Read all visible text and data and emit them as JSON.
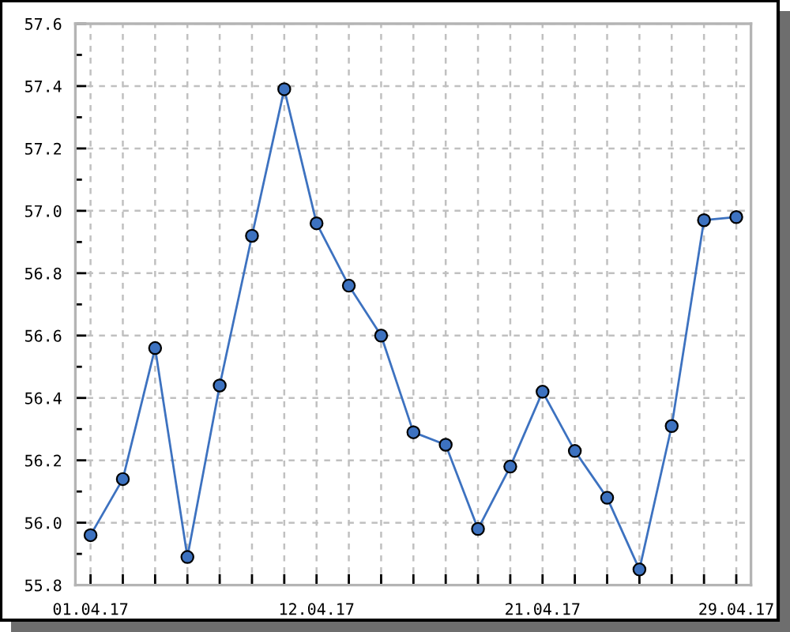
{
  "chart_data": {
    "type": "line",
    "categories": [
      "01.04.17",
      null,
      null,
      null,
      null,
      null,
      null,
      "12.04.17",
      null,
      null,
      null,
      null,
      null,
      null,
      "21.04.17",
      null,
      null,
      null,
      null,
      null,
      "29.04.17"
    ],
    "series": [
      {
        "color": "#3d72c0",
        "values": [
          55.96,
          56.14,
          56.56,
          55.89,
          56.44,
          56.92,
          57.39,
          56.96,
          56.76,
          56.6,
          56.29,
          56.25,
          55.98,
          56.18,
          56.42,
          56.23,
          56.08,
          55.85,
          56.31,
          56.97,
          56.98
        ]
      }
    ],
    "ylim": [
      55.8,
      57.6
    ],
    "yticks": [
      55.8,
      {
        "value": 55.9,
        "label": null
      },
      {
        "value": 56.0,
        "label": "56.0"
      },
      {
        "value": 56.1,
        "label": null
      },
      56.2,
      {
        "value": 56.3,
        "label": null
      },
      56.4,
      {
        "value": 56.5,
        "label": null
      },
      56.6,
      {
        "value": 56.7,
        "label": null
      },
      56.8,
      {
        "value": 56.9,
        "label": null
      },
      {
        "value": 57.0,
        "label": "57.0"
      },
      {
        "value": 57.1,
        "label": null
      },
      57.2,
      {
        "value": 57.3,
        "label": null
      },
      57.4,
      {
        "value": 57.5,
        "label": null
      },
      57.6
    ],
    "grid": true,
    "marker": "circle",
    "line_style": "solid"
  }
}
